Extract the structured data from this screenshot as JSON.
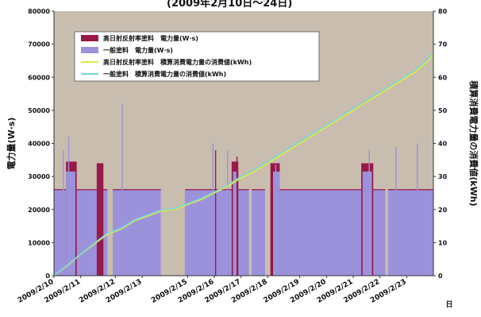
{
  "chart_data": {
    "type": "bar+line",
    "title_fragment": "(2009年2月10日〜24日)",
    "ylabel_left": "電力量(W·s)",
    "ylabel_right": "積算消費電力量の消費値(kWh)",
    "xlabel_right": "日",
    "ylim_left": [
      0,
      80000
    ],
    "ylim_right": [
      0,
      80
    ],
    "yticks_left": [
      0,
      10000,
      20000,
      30000,
      40000,
      50000,
      60000,
      70000,
      80000
    ],
    "yticks_left_labels": [
      "0",
      "10000",
      "20000",
      "30000",
      "40000",
      "50000",
      "60000",
      "70000",
      "80000"
    ],
    "yticks_right": [
      0,
      10,
      20,
      30,
      40,
      50,
      60,
      70,
      80
    ],
    "yticks_right_labels": [
      "0",
      "10",
      "20",
      "30",
      "40",
      "50",
      "60",
      "70",
      "80"
    ],
    "x_ticks": [
      "2009/2/10",
      "2009/2/11",
      "2009/2/12",
      "2009/2/13",
      "2009/2/15",
      "2009/2/16",
      "2009/2/17",
      "2009/2/18",
      "2009/2/19",
      "2009/2/20",
      "2009/2/21",
      "2009/2/22",
      "2009/2/23"
    ],
    "x_tick_days": [
      10,
      11,
      12.3,
      13.3,
      15,
      16,
      17,
      18,
      19.2,
      20.2,
      21.2,
      22.2,
      23.2
    ],
    "x_range_days": [
      10,
      24.2
    ],
    "plot_background": "#c9bdaf",
    "legend": [
      {
        "label": "高日射反射率塗料　電力量(W·s)",
        "color": "#9a1848",
        "kind": "bar"
      },
      {
        "label": "一般塗料　電力量(W·s)",
        "color": "#9c92dc",
        "kind": "bar"
      },
      {
        "label": "高日射反射率塗料　積算消費電力量の消費値(kWh)",
        "color": "#e8e83a",
        "kind": "line"
      },
      {
        "label": "一般塗料　積算消費電力量の消費値(kWh)",
        "color": "#76d6dc",
        "kind": "line"
      }
    ],
    "series": [
      {
        "name": "一般塗料　電力量(W·s)",
        "kind": "bar",
        "axis": "left",
        "blocks": [
          {
            "start": 10.0,
            "end": 12.0,
            "level": 26000
          },
          {
            "start": 12.2,
            "end": 14.0,
            "level": 26000
          },
          {
            "start": 14.9,
            "end": 17.3,
            "level": 26000
          },
          {
            "start": 17.4,
            "end": 17.9,
            "level": 26000
          },
          {
            "start": 18.1,
            "end": 22.4,
            "level": 26000
          },
          {
            "start": 22.5,
            "end": 24.2,
            "level": 26000
          }
        ],
        "peaks": [
          {
            "start": 10.45,
            "end": 10.8,
            "level": 31500
          },
          {
            "start": 16.7,
            "end": 16.85,
            "level": 31500
          },
          {
            "start": 18.2,
            "end": 18.45,
            "level": 31500
          },
          {
            "start": 21.55,
            "end": 21.9,
            "level": 31500
          }
        ],
        "spikes": [
          [
            10.35,
            38000
          ],
          [
            10.55,
            42000
          ],
          [
            12.55,
            52000
          ],
          [
            15.95,
            40000
          ],
          [
            16.5,
            38000
          ],
          [
            18.3,
            33500
          ],
          [
            21.8,
            38000
          ],
          [
            22.8,
            39000
          ],
          [
            23.6,
            40000
          ]
        ]
      },
      {
        "name": "高日射反射率塗料　電力量(W·s)",
        "kind": "bar",
        "axis": "left",
        "peaks": [
          {
            "start": 10.45,
            "end": 10.85,
            "level": 34500
          },
          {
            "start": 11.6,
            "end": 11.85,
            "level": 34000
          },
          {
            "start": 16.65,
            "end": 16.9,
            "level": 34500
          },
          {
            "start": 18.1,
            "end": 18.45,
            "level": 34000
          },
          {
            "start": 21.5,
            "end": 21.95,
            "level": 34000
          }
        ],
        "spikes": [
          [
            16.05,
            38000
          ],
          [
            16.85,
            36000
          ]
        ]
      },
      {
        "name": "高日射反射率塗料　積算消費電力量の消費値(kWh)",
        "kind": "line",
        "axis": "right",
        "x": [
          10.0,
          10.5,
          11.0,
          11.5,
          12.0,
          12.5,
          13.0,
          13.5,
          14.0,
          14.5,
          15.0,
          15.5,
          16.0,
          16.5,
          17.0,
          17.5,
          18.0,
          18.5,
          19.0,
          19.5,
          20.0,
          20.5,
          21.0,
          21.5,
          22.0,
          22.5,
          23.0,
          23.5,
          24.0,
          24.2
        ],
        "y": [
          0,
          3.0,
          6.5,
          9.5,
          12.5,
          14.0,
          16.5,
          18.0,
          19.5,
          20.0,
          21.5,
          23.0,
          25.0,
          27.0,
          29.5,
          31.5,
          34.0,
          36.5,
          39.0,
          41.5,
          44.0,
          46.5,
          49.0,
          51.5,
          54.0,
          56.5,
          59.0,
          61.5,
          65.0,
          67.0
        ]
      },
      {
        "name": "一般塗料　積算消費電力量の消費値(kWh)",
        "kind": "line",
        "axis": "right",
        "x": [
          10.0,
          10.5,
          11.0,
          11.5,
          12.0,
          12.5,
          13.0,
          13.5,
          14.0,
          14.5,
          15.0,
          15.5,
          16.0,
          16.5,
          17.0,
          17.5,
          18.0,
          18.5,
          19.0,
          19.5,
          20.0,
          20.5,
          21.0,
          21.5,
          22.0,
          22.5,
          23.0,
          23.5,
          24.0,
          24.2
        ],
        "y": [
          0,
          3.2,
          6.6,
          9.8,
          12.8,
          14.3,
          16.8,
          18.3,
          19.8,
          20.2,
          21.8,
          23.3,
          25.3,
          27.4,
          30.0,
          32.0,
          34.5,
          37.0,
          39.5,
          42.0,
          44.5,
          47.0,
          49.5,
          52.0,
          54.5,
          57.0,
          59.5,
          62.0,
          65.5,
          67.5
        ]
      }
    ]
  }
}
